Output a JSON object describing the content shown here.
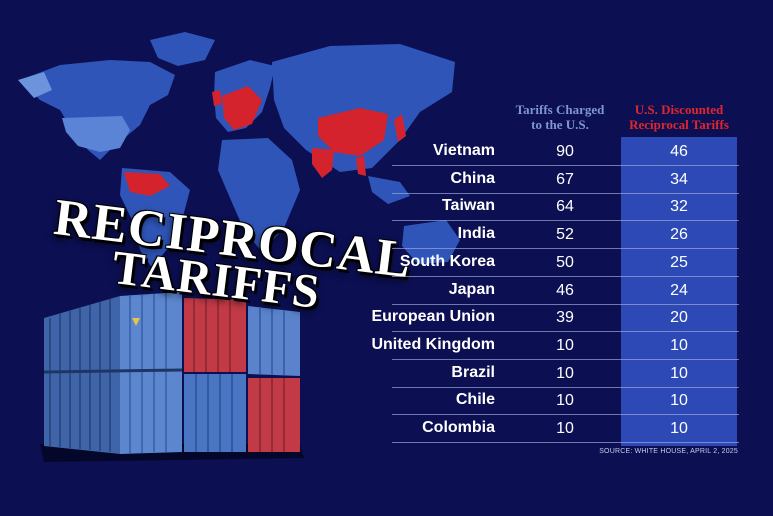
{
  "title": {
    "line1": "RECIPROCAL",
    "line2": "TARIFFS"
  },
  "colors": {
    "background": "#0c0f52",
    "map": "#2f55b8",
    "highlight": "#d4232d",
    "band": "#2c49b6",
    "charged_header": "#7e96d4",
    "discount_header": "#e0262e"
  },
  "chart_data": {
    "type": "table",
    "columns": [
      "Tariffs Charged to the U.S.",
      "U.S. Discounted Reciprocal Tariffs"
    ],
    "rows": [
      {
        "country": "Vietnam",
        "charged": 90,
        "discounted": 46
      },
      {
        "country": "China",
        "charged": 67,
        "discounted": 34
      },
      {
        "country": "Taiwan",
        "charged": 64,
        "discounted": 32
      },
      {
        "country": "India",
        "charged": 52,
        "discounted": 26
      },
      {
        "country": "South Korea",
        "charged": 50,
        "discounted": 25
      },
      {
        "country": "Japan",
        "charged": 46,
        "discounted": 24
      },
      {
        "country": "European Union",
        "charged": 39,
        "discounted": 20
      },
      {
        "country": "United Kingdom",
        "charged": 10,
        "discounted": 10
      },
      {
        "country": "Brazil",
        "charged": 10,
        "discounted": 10
      },
      {
        "country": "Chile",
        "charged": 10,
        "discounted": 10
      },
      {
        "country": "Colombia",
        "charged": 10,
        "discounted": 10
      }
    ],
    "header_charged": {
      "line1": "Tariffs Charged",
      "line2": "to the U.S."
    },
    "header_discounted": {
      "line1": "U.S. Discounted",
      "line2": "Reciprocal Tariffs"
    },
    "source": "SOURCE: WHITE HOUSE, APRIL 2, 2025"
  }
}
